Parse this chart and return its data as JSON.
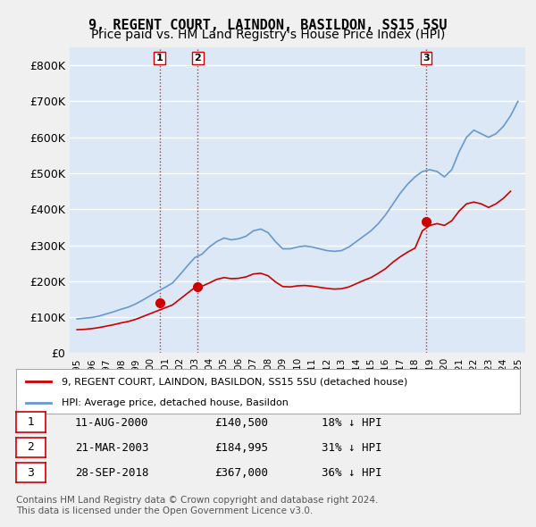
{
  "title": "9, REGENT COURT, LAINDON, BASILDON, SS15 5SU",
  "subtitle": "Price paid vs. HM Land Registry's House Price Index (HPI)",
  "ylabel": "",
  "ylim": [
    0,
    850000
  ],
  "yticks": [
    0,
    100000,
    200000,
    300000,
    400000,
    500000,
    600000,
    700000,
    800000
  ],
  "ytick_labels": [
    "£0",
    "£100K",
    "£200K",
    "£300K",
    "£400K",
    "£500K",
    "£600K",
    "£700K",
    "£800K"
  ],
  "bg_color": "#e8f0f8",
  "plot_bg": "#dce8f5",
  "red_color": "#cc0000",
  "blue_color": "#6699cc",
  "grid_color": "#ffffff",
  "transaction_dates": [
    "2000-08-11",
    "2003-03-21",
    "2018-09-28"
  ],
  "transaction_prices": [
    140500,
    184995,
    367000
  ],
  "transaction_labels": [
    "1",
    "2",
    "3"
  ],
  "legend_line1": "9, REGENT COURT, LAINDON, BASILDON, SS15 5SU (detached house)",
  "legend_line2": "HPI: Average price, detached house, Basildon",
  "table_rows": [
    [
      "1",
      "11-AUG-2000",
      "£140,500",
      "18% ↓ HPI"
    ],
    [
      "2",
      "21-MAR-2003",
      "£184,995",
      "31% ↓ HPI"
    ],
    [
      "3",
      "28-SEP-2018",
      "£367,000",
      "36% ↓ HPI"
    ]
  ],
  "footnote": "Contains HM Land Registry data © Crown copyright and database right 2024.\nThis data is licensed under the Open Government Licence v3.0.",
  "title_fontsize": 11,
  "subtitle_fontsize": 10
}
